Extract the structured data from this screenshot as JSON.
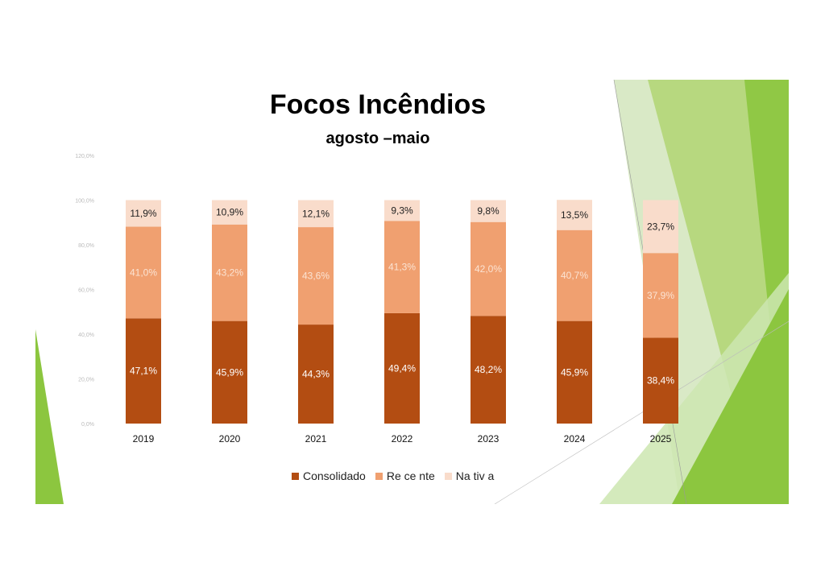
{
  "chart_data": {
    "type": "bar",
    "stacked": true,
    "title": "Focos Incêndios",
    "subtitle": "agosto –maio",
    "xlabel": "",
    "ylabel": "",
    "categories": [
      "2019",
      "2020",
      "2021",
      "2022",
      "2023",
      "2024",
      "2025"
    ],
    "ylim": [
      0,
      120
    ],
    "yticks": [
      "0,0%",
      "20,0%",
      "40,0%",
      "60,0%",
      "80,0%",
      "100,0%",
      "120,0%"
    ],
    "grid": false,
    "legend_position": "bottom",
    "series": [
      {
        "name": "Consolidado",
        "color": "#b34d12",
        "label_color": "#ffffff",
        "values": [
          47.1,
          45.9,
          44.3,
          49.4,
          48.2,
          45.9,
          38.4
        ],
        "labels": [
          "47,1%",
          "45,9%",
          "44,3%",
          "49,4%",
          "48,2%",
          "45,9%",
          "38,4%"
        ]
      },
      {
        "name": "Re ce nte",
        "color": "#f0a070",
        "label_color": "#fbe3d3",
        "values": [
          41.0,
          43.2,
          43.6,
          41.3,
          42.0,
          40.7,
          37.9
        ],
        "labels": [
          "41,0%",
          "43,2%",
          "43,6%",
          "41,3%",
          "42,0%",
          "40,7%",
          "37,9%"
        ]
      },
      {
        "name": "Na tiv a",
        "color": "#f9dccb",
        "label_color": "#222222",
        "values": [
          11.9,
          10.9,
          12.1,
          9.3,
          9.8,
          13.5,
          23.7
        ],
        "labels": [
          "11,9%",
          "10,9%",
          "12,1%",
          "9,3%",
          "9,8%",
          "13,5%",
          "23,7%"
        ]
      }
    ]
  }
}
